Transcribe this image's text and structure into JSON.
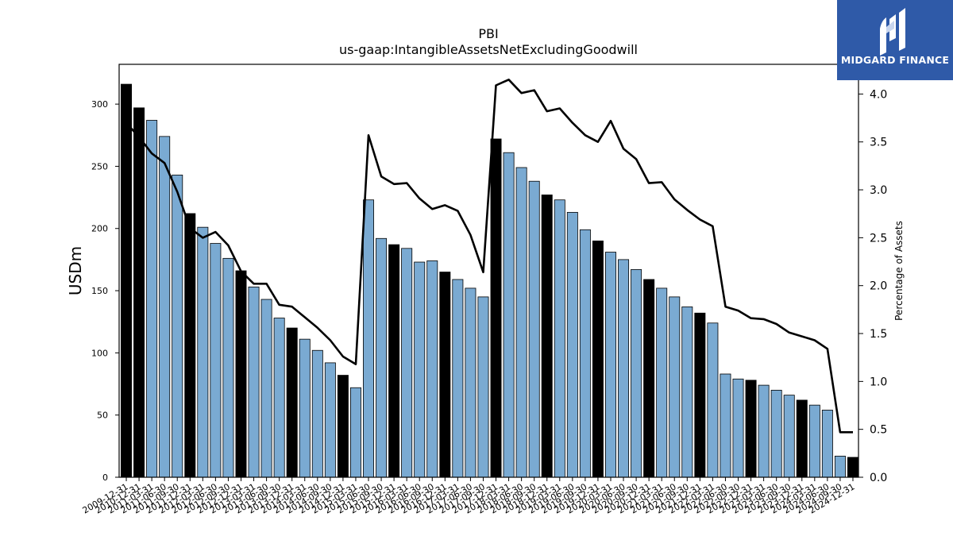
{
  "chart_data": {
    "type": "bar",
    "title": "PBI",
    "subtitle": "us-gaap:IntangibleAssetsNetExcludingGoodwill",
    "ylabel": "USDm",
    "y2label": "Percentage of Assets",
    "ylim": [
      0,
      332
    ],
    "y2lim": [
      0,
      4.31
    ],
    "yticks": [
      0,
      50,
      100,
      150,
      200,
      250,
      300
    ],
    "y2ticks": [
      "0.0",
      "0.5",
      "1.0",
      "1.5",
      "2.0",
      "2.5",
      "3.0",
      "3.5",
      "4.0"
    ],
    "categories": [
      "2009-12-31",
      "2010-12-31",
      "2011-03-31",
      "2011-06-30",
      "2011-09-30",
      "2011-12-31",
      "2012-03-31",
      "2012-06-30",
      "2012-09-30",
      "2012-12-31",
      "2013-03-31",
      "2013-06-30",
      "2013-09-30",
      "2013-12-31",
      "2014-03-31",
      "2014-06-30",
      "2014-09-30",
      "2014-12-31",
      "2015-03-31",
      "2015-06-30",
      "2015-09-30",
      "2015-12-31",
      "2016-03-31",
      "2016-06-30",
      "2016-09-30",
      "2016-12-31",
      "2017-03-31",
      "2017-06-30",
      "2017-09-30",
      "2017-12-31",
      "2018-03-31",
      "2018-06-30",
      "2018-09-30",
      "2018-12-31",
      "2019-03-31",
      "2019-06-30",
      "2019-09-30",
      "2019-12-31",
      "2020-03-31",
      "2020-06-30",
      "2020-09-30",
      "2020-12-31",
      "2021-03-31",
      "2021-06-30",
      "2021-09-30",
      "2021-12-31",
      "2022-03-31",
      "2022-06-30",
      "2022-09-30",
      "2022-12-31",
      "2023-03-31",
      "2023-06-30",
      "2023-09-30",
      "2023-12-31",
      "2024-03-31",
      "2024-06-30",
      "2024-09-30",
      "2024-12-31"
    ],
    "annual_flags": [
      1,
      1,
      0,
      0,
      0,
      1,
      0,
      0,
      0,
      1,
      0,
      0,
      0,
      1,
      0,
      0,
      0,
      1,
      0,
      0,
      0,
      1,
      0,
      0,
      0,
      1,
      0,
      0,
      0,
      1,
      0,
      0,
      0,
      1,
      0,
      0,
      0,
      1,
      0,
      0,
      0,
      1,
      0,
      0,
      0,
      1,
      0,
      0,
      0,
      1,
      0,
      0,
      0,
      1,
      0,
      0,
      0,
      1
    ],
    "series": [
      {
        "name": "",
        "type": "bar",
        "values": [
          316,
          297,
          287,
          274,
          243,
          212,
          201,
          188,
          176,
          166,
          153,
          143,
          128,
          120,
          111,
          102,
          92,
          82,
          72,
          223,
          192,
          187,
          184,
          173,
          174,
          165,
          159,
          152,
          145,
          272,
          261,
          249,
          238,
          227,
          223,
          213,
          199,
          190,
          181,
          175,
          167,
          159,
          152,
          145,
          137,
          132,
          124,
          83,
          79,
          78,
          74,
          70,
          66,
          62,
          58,
          54,
          17,
          16
        ]
      },
      {
        "name": "",
        "type": "line",
        "axis": "right",
        "values": [
          3.7,
          3.55,
          3.38,
          3.28,
          2.98,
          2.6,
          2.5,
          2.56,
          2.42,
          2.15,
          2.02,
          2.02,
          1.8,
          1.78,
          1.67,
          1.56,
          1.43,
          1.26,
          1.18,
          3.57,
          3.14,
          3.06,
          3.07,
          2.91,
          2.8,
          2.84,
          2.78,
          2.53,
          2.14,
          4.09,
          4.15,
          4.01,
          4.04,
          3.82,
          3.85,
          3.7,
          3.57,
          3.5,
          3.72,
          3.43,
          3.32,
          3.07,
          3.08,
          2.9,
          2.79,
          2.69,
          2.62,
          1.78,
          1.74,
          1.66,
          1.65,
          1.6,
          1.51,
          1.47,
          1.43,
          1.34,
          0.47,
          0.47
        ]
      }
    ],
    "colors": {
      "annual_bar": "#000000",
      "quarter_bar": "#7aaad2",
      "line": "#000000",
      "axis": "#000000"
    },
    "grid": false,
    "legend": "none"
  },
  "logo": {
    "text": "MIDGARD FINANCE",
    "icon": "midgard-logo-icon",
    "background": "#2f5aa8"
  }
}
